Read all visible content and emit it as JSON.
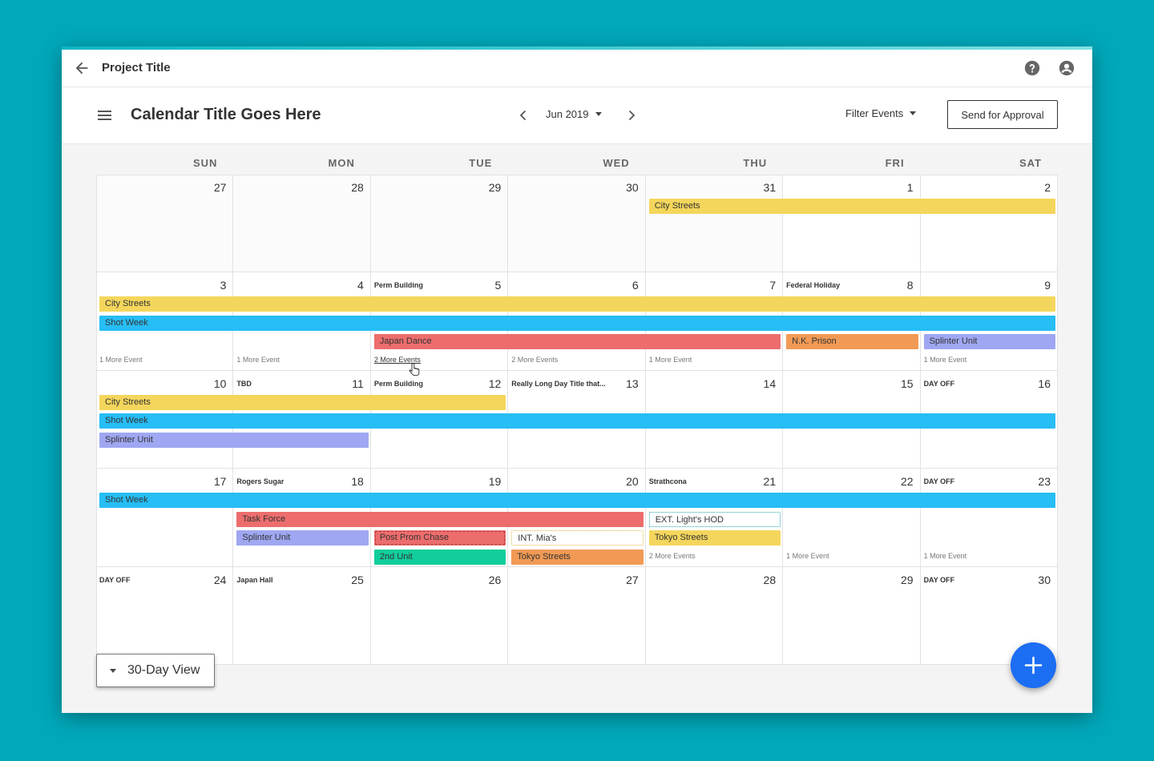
{
  "topbar": {
    "project_title": "Project Title"
  },
  "header": {
    "calendar_title": "Calendar Title Goes Here",
    "month_label": "Jun 2019",
    "filter_label": "Filter Events",
    "approve_label": "Send for Approval"
  },
  "days_of_week": [
    "SUN",
    "MON",
    "TUE",
    "WED",
    "THU",
    "FRI",
    "SAT"
  ],
  "weeks": [
    {
      "days": [
        {
          "num": "27",
          "title": ""
        },
        {
          "num": "28",
          "title": ""
        },
        {
          "num": "29",
          "title": ""
        },
        {
          "num": "30",
          "title": ""
        },
        {
          "num": "31",
          "title": ""
        },
        {
          "num": "1",
          "title": ""
        },
        {
          "num": "2",
          "title": ""
        }
      ]
    },
    {
      "days": [
        {
          "num": "3",
          "title": ""
        },
        {
          "num": "4",
          "title": ""
        },
        {
          "num": "5",
          "title": "Perm  Building"
        },
        {
          "num": "6",
          "title": ""
        },
        {
          "num": "7",
          "title": ""
        },
        {
          "num": "8",
          "title": "Federal Holiday"
        },
        {
          "num": "9",
          "title": ""
        }
      ]
    },
    {
      "days": [
        {
          "num": "10",
          "title": ""
        },
        {
          "num": "11",
          "title": "TBD"
        },
        {
          "num": "12",
          "title": "Perm  Building"
        },
        {
          "num": "13",
          "title": "Really Long Day Title that..."
        },
        {
          "num": "14",
          "title": ""
        },
        {
          "num": "15",
          "title": ""
        },
        {
          "num": "16",
          "title": "DAY OFF"
        }
      ]
    },
    {
      "days": [
        {
          "num": "17",
          "title": ""
        },
        {
          "num": "18",
          "title": "Rogers Sugar"
        },
        {
          "num": "19",
          "title": ""
        },
        {
          "num": "20",
          "title": ""
        },
        {
          "num": "21",
          "title": "Strathcona"
        },
        {
          "num": "22",
          "title": ""
        },
        {
          "num": "23",
          "title": "DAY OFF"
        }
      ]
    },
    {
      "days": [
        {
          "num": "24",
          "title": "DAY OFF"
        },
        {
          "num": "25",
          "title": "Japan Hall"
        },
        {
          "num": "26",
          "title": ""
        },
        {
          "num": "27",
          "title": ""
        },
        {
          "num": "28",
          "title": ""
        },
        {
          "num": "29",
          "title": ""
        },
        {
          "num": "30",
          "title": "DAY OFF"
        }
      ]
    }
  ],
  "events": [
    {
      "label": "City Streets",
      "week": 0,
      "start": 4,
      "span": 3,
      "lane": 0,
      "color": "yellow"
    },
    {
      "label": "City Streets",
      "week": 1,
      "start": 0,
      "span": 7,
      "lane": 0,
      "color": "yellow"
    },
    {
      "label": "Shot Week",
      "week": 1,
      "start": 0,
      "span": 7,
      "lane": 1,
      "color": "blue"
    },
    {
      "label": "Japan Dance",
      "week": 1,
      "start": 2,
      "span": 3,
      "lane": 2,
      "color": "red"
    },
    {
      "label": "N.K. Prison",
      "week": 1,
      "start": 5,
      "span": 1,
      "lane": 2,
      "color": "orange"
    },
    {
      "label": "Splinter Unit",
      "week": 1,
      "start": 6,
      "span": 1,
      "lane": 2,
      "color": "purple"
    },
    {
      "label": "City Streets",
      "week": 2,
      "start": 0,
      "span": 3,
      "lane": 0,
      "color": "yellow"
    },
    {
      "label": "Shot Week",
      "week": 2,
      "start": 0,
      "span": 7,
      "lane": 1,
      "color": "blue"
    },
    {
      "label": "Splinter Unit",
      "week": 2,
      "start": 0,
      "span": 2,
      "lane": 2,
      "color": "purple"
    },
    {
      "label": "Shot Week",
      "week": 3,
      "start": 0,
      "span": 7,
      "lane": 0,
      "color": "blue"
    },
    {
      "label": "Task Force",
      "week": 3,
      "start": 1,
      "span": 3,
      "lane": 1,
      "color": "red"
    },
    {
      "label": "EXT. Light's HOD",
      "week": 3,
      "start": 4,
      "span": 1,
      "lane": 1,
      "color": "dot-teal"
    },
    {
      "label": "Splinter Unit",
      "week": 3,
      "start": 1,
      "span": 1,
      "lane": 2,
      "color": "purple"
    },
    {
      "label": "Post Prom Chase",
      "week": 3,
      "start": 2,
      "span": 1,
      "lane": 2,
      "color": "hatch-red"
    },
    {
      "label": "INT. Mia's",
      "week": 3,
      "start": 3,
      "span": 1,
      "lane": 2,
      "color": "dot-yellow"
    },
    {
      "label": "Tokyo Streets",
      "week": 3,
      "start": 4,
      "span": 1,
      "lane": 2,
      "color": "yellow"
    },
    {
      "label": "2nd Unit",
      "week": 3,
      "start": 2,
      "span": 1,
      "lane": 3,
      "color": "green"
    },
    {
      "label": "Tokyo Streets",
      "week": 3,
      "start": 3,
      "span": 1,
      "lane": 3,
      "color": "orange"
    }
  ],
  "more_links": [
    {
      "label": "1 More Event",
      "week": 1,
      "day": 0,
      "underline": false
    },
    {
      "label": "1 More Event",
      "week": 1,
      "day": 1,
      "underline": false
    },
    {
      "label": "2 More Events",
      "week": 1,
      "day": 2,
      "underline": true
    },
    {
      "label": "2 More Events",
      "week": 1,
      "day": 3,
      "underline": false
    },
    {
      "label": "1 More Event",
      "week": 1,
      "day": 4,
      "underline": false
    },
    {
      "label": "1 More Event",
      "week": 1,
      "day": 6,
      "underline": false
    },
    {
      "label": "2 More Events",
      "week": 3,
      "day": 4,
      "underline": false
    },
    {
      "label": "1 More Event",
      "week": 3,
      "day": 5,
      "underline": false
    },
    {
      "label": "1 More Event",
      "week": 3,
      "day": 6,
      "underline": false
    }
  ],
  "view_button": {
    "label": "30-Day View"
  },
  "colors": {
    "background": "#00a8ba",
    "fab": "#1c6ef2",
    "yellow": "#f4d65c",
    "blue": "#27bdf5",
    "red": "#ed6d6d",
    "orange": "#f19a55",
    "purple": "#9fa7f2",
    "green": "#12ce9c"
  },
  "icons": {
    "back": "arrow-left-icon",
    "help": "help-icon",
    "user": "account-icon",
    "menu": "hamburger-icon",
    "prev": "chevron-left-icon",
    "next": "chevron-right-icon",
    "fab": "plus-icon"
  }
}
